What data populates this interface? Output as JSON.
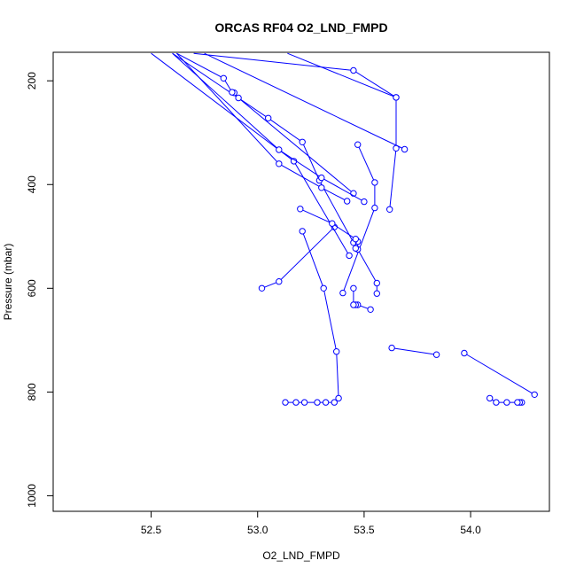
{
  "chart_data": {
    "type": "line",
    "title": "ORCAS RF04 O2_LND_FMPD",
    "xlabel": "O2_LND_FMPD",
    "ylabel": "Pressure (mbar)",
    "xlim": [
      52.04,
      54.37
    ],
    "ylim": [
      1030,
      145
    ],
    "y_reversed": true,
    "x_ticks": [
      52.5,
      53.0,
      53.5,
      54.0
    ],
    "x_tick_labels": [
      "52.5",
      "53.0",
      "53.5",
      "54.0"
    ],
    "y_ticks": [
      200,
      400,
      600,
      800,
      1000
    ],
    "y_tick_labels": [
      "200",
      "400",
      "600",
      "800",
      "1000"
    ],
    "grid": false,
    "legend": "none",
    "series_color": "#0000ff",
    "marker": "open-circle",
    "series": [
      {
        "x": [
          54.24,
          54.23,
          54.22,
          54.17,
          54.12,
          54.09
        ],
        "y": [
          820,
          820,
          820,
          820,
          820,
          812
        ]
      },
      {
        "x": [
          54.3,
          53.97
        ],
        "y": [
          805,
          725
        ]
      },
      {
        "x": [
          53.63,
          53.84
        ],
        "y": [
          715,
          728
        ]
      },
      {
        "x": [
          53.13,
          53.18,
          53.22,
          53.28,
          53.32,
          53.36,
          53.38,
          53.37,
          53.31,
          53.21
        ],
        "y": [
          820,
          820,
          820,
          820,
          820,
          820,
          812,
          722,
          600,
          490
        ]
      },
      {
        "x": [
          53.53,
          53.47,
          53.46,
          53.45,
          53.45
        ],
        "y": [
          641,
          632,
          632,
          632,
          600
        ]
      },
      {
        "x": [
          53.02,
          53.1,
          53.36
        ],
        "y": [
          600,
          587,
          482
        ]
      },
      {
        "x": [
          53.4,
          53.55,
          53.55,
          53.47
        ],
        "y": [
          609,
          445,
          396,
          323
        ]
      },
      {
        "x": [
          53.56,
          53.56,
          53.47,
          53.47
        ],
        "y": [
          610,
          590,
          525,
          510
        ]
      },
      {
        "x": [
          53.43,
          53.17,
          52.5
        ],
        "y": [
          537,
          355,
          147
        ]
      },
      {
        "x": [
          53.45,
          53.29,
          53.21,
          53.05,
          52.6
        ],
        "y": [
          512,
          392,
          318,
          272,
          147
        ]
      },
      {
        "x": [
          53.46,
          53.46,
          53.35,
          53.2
        ],
        "y": [
          523,
          505,
          475,
          447
        ]
      },
      {
        "x": [
          53.42,
          53.3,
          53.1,
          52.62
        ],
        "y": [
          432,
          406,
          360,
          147
        ]
      },
      {
        "x": [
          53.45,
          52.91,
          52.89,
          52.88,
          52.84,
          52.62
        ],
        "y": [
          417,
          233,
          223,
          222,
          195,
          147
        ]
      },
      {
        "x": [
          53.5,
          53.3,
          53.1,
          52.6
        ],
        "y": [
          433,
          387,
          333,
          147
        ]
      },
      {
        "x": [
          53.62,
          53.65,
          53.65,
          53.45,
          52.7
        ],
        "y": [
          448,
          330,
          232,
          180,
          147
        ]
      },
      {
        "x": [
          53.69,
          52.75
        ],
        "y": [
          332,
          147
        ]
      },
      {
        "x": [
          53.65,
          53.14
        ],
        "y": [
          232,
          147
        ]
      }
    ]
  }
}
